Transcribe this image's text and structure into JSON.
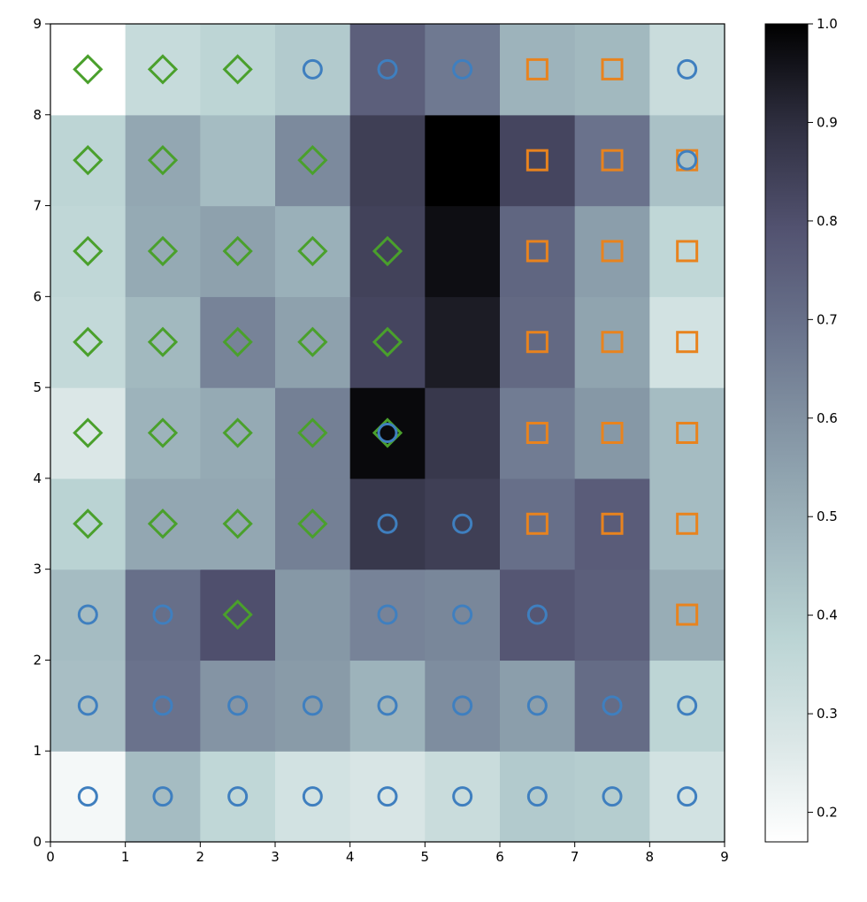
{
  "chart_data": {
    "type": "heatmap",
    "title": "",
    "xlabel": "",
    "ylabel": "",
    "xlim": [
      0,
      9
    ],
    "ylim": [
      0,
      9
    ],
    "x_ticks": [
      "0",
      "1",
      "2",
      "3",
      "4",
      "5",
      "6",
      "7",
      "8",
      "9"
    ],
    "y_ticks": [
      "0",
      "1",
      "2",
      "3",
      "4",
      "5",
      "6",
      "7",
      "8",
      "9"
    ],
    "colormap": "bone_r",
    "value_range": [
      0.17,
      1.0
    ],
    "colorbar_ticks": [
      "0.2",
      "0.3",
      "0.4",
      "0.5",
      "0.6",
      "0.7",
      "0.8",
      "0.9",
      "1.0"
    ],
    "grid": false,
    "values": [
      [
        0.2,
        0.46,
        0.36,
        0.3,
        0.28,
        0.33,
        0.41,
        0.4,
        0.3
      ],
      [
        0.45,
        0.69,
        0.59,
        0.57,
        0.49,
        0.61,
        0.56,
        0.71,
        0.37
      ],
      [
        0.46,
        0.7,
        0.8,
        0.58,
        0.64,
        0.63,
        0.78,
        0.75,
        0.51
      ],
      [
        0.38,
        0.53,
        0.53,
        0.65,
        0.87,
        0.85,
        0.7,
        0.76,
        0.46
      ],
      [
        0.27,
        0.49,
        0.52,
        0.65,
        0.98,
        0.87,
        0.66,
        0.58,
        0.46
      ],
      [
        0.35,
        0.47,
        0.64,
        0.55,
        0.83,
        0.94,
        0.72,
        0.54,
        0.3
      ],
      [
        0.36,
        0.52,
        0.55,
        0.5,
        0.84,
        0.97,
        0.73,
        0.56,
        0.36
      ],
      [
        0.37,
        0.53,
        0.46,
        0.62,
        0.85,
        1.0,
        0.83,
        0.69,
        0.44
      ],
      [
        0.17,
        0.34,
        0.37,
        0.41,
        0.75,
        0.67,
        0.49,
        0.47,
        0.33
      ]
    ],
    "marker_styles": {
      "circle": {
        "shape": "circle",
        "color": "#3f7fbf"
      },
      "diamond": {
        "shape": "diamond",
        "color": "#4aa02c"
      },
      "square": {
        "shape": "square",
        "color": "#e8831e"
      }
    },
    "markers": [
      [
        "circle",
        "circle",
        "circle",
        "circle",
        "circle",
        "circle",
        "circle",
        "circle",
        "circle"
      ],
      [
        "circle",
        "circle",
        "circle",
        "circle",
        "circle",
        "circle",
        "circle",
        "circle",
        "circle"
      ],
      [
        "circle",
        "circle",
        "diamond",
        "",
        "circle",
        "circle",
        "circle",
        "",
        "square"
      ],
      [
        "diamond",
        "diamond",
        "diamond",
        "diamond",
        "circle",
        "circle",
        "square",
        "square",
        "square"
      ],
      [
        "diamond",
        "diamond",
        "diamond",
        "diamond",
        "diamond+circle",
        "",
        "square",
        "square",
        "square"
      ],
      [
        "diamond",
        "diamond",
        "diamond",
        "diamond",
        "diamond",
        "",
        "square",
        "square",
        "square"
      ],
      [
        "diamond",
        "diamond",
        "diamond",
        "diamond",
        "diamond",
        "",
        "square",
        "square",
        "square"
      ],
      [
        "diamond",
        "diamond",
        "",
        "diamond",
        "",
        "",
        "square",
        "square",
        "square+circle"
      ],
      [
        "diamond",
        "diamond",
        "diamond",
        "circle",
        "circle",
        "circle",
        "square",
        "square",
        "circle"
      ]
    ]
  }
}
